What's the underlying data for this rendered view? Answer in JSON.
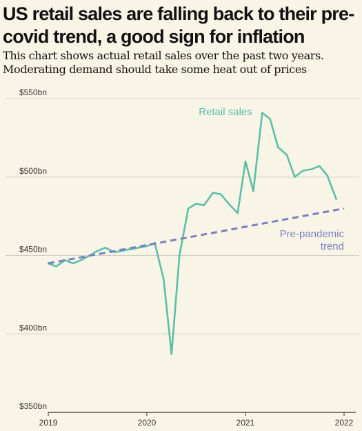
{
  "title": "US retail sales are falling back to their pre-covid trend, a good sign for inflation",
  "subtitle": "This chart shows actual retail sales over the past two years. Moderating demand should take some heat out of prices",
  "colors": {
    "background": "#f8f4e6",
    "actual": "#5bbfa6",
    "trend": "#7a7fc4",
    "grid": "#cfcfc8"
  },
  "chart_data": {
    "type": "line",
    "ylim": [
      350,
      550
    ],
    "xlim": [
      2019,
      2022
    ],
    "y_ticks": [
      {
        "value": 550,
        "label": "$550bn"
      },
      {
        "value": 500,
        "label": "$500bn"
      },
      {
        "value": 450,
        "label": "$450bn"
      },
      {
        "value": 400,
        "label": "$400bn"
      },
      {
        "value": 350,
        "label": "$350bn"
      }
    ],
    "x_ticks": [
      {
        "value": 2019,
        "label": "2019"
      },
      {
        "value": 2020,
        "label": "2020"
      },
      {
        "value": 2021,
        "label": "2021"
      },
      {
        "value": 2022,
        "label": "2022"
      }
    ],
    "grid": "horizontal",
    "series": [
      {
        "name": "Retail sales",
        "label": "Retail sales",
        "style": "solid",
        "color": "#5bbfa6",
        "points": [
          [
            2019.0,
            445
          ],
          [
            2019.08,
            443
          ],
          [
            2019.17,
            447
          ],
          [
            2019.25,
            445
          ],
          [
            2019.33,
            447
          ],
          [
            2019.42,
            450
          ],
          [
            2019.5,
            453
          ],
          [
            2019.58,
            455
          ],
          [
            2019.67,
            452
          ],
          [
            2019.75,
            453
          ],
          [
            2019.83,
            454
          ],
          [
            2019.92,
            455
          ],
          [
            2020.0,
            456
          ],
          [
            2020.08,
            458
          ],
          [
            2020.17,
            435
          ],
          [
            2020.25,
            387
          ],
          [
            2020.33,
            450
          ],
          [
            2020.42,
            480
          ],
          [
            2020.5,
            483
          ],
          [
            2020.58,
            482
          ],
          [
            2020.67,
            490
          ],
          [
            2020.75,
            489
          ],
          [
            2020.83,
            483
          ],
          [
            2020.92,
            477
          ],
          [
            2021.0,
            510
          ],
          [
            2021.08,
            491
          ],
          [
            2021.17,
            541
          ],
          [
            2021.25,
            537
          ],
          [
            2021.33,
            519
          ],
          [
            2021.42,
            514
          ],
          [
            2021.5,
            500
          ],
          [
            2021.58,
            504
          ],
          [
            2021.67,
            505
          ],
          [
            2021.75,
            507
          ],
          [
            2021.83,
            501
          ],
          [
            2021.92,
            486
          ]
        ]
      },
      {
        "name": "Pre-pandemic trend",
        "label": [
          "Pre-pandemic",
          "trend"
        ],
        "style": "dashed",
        "color": "#7a7fc4",
        "points": [
          [
            2019.0,
            445
          ],
          [
            2022.0,
            480
          ]
        ]
      }
    ]
  }
}
